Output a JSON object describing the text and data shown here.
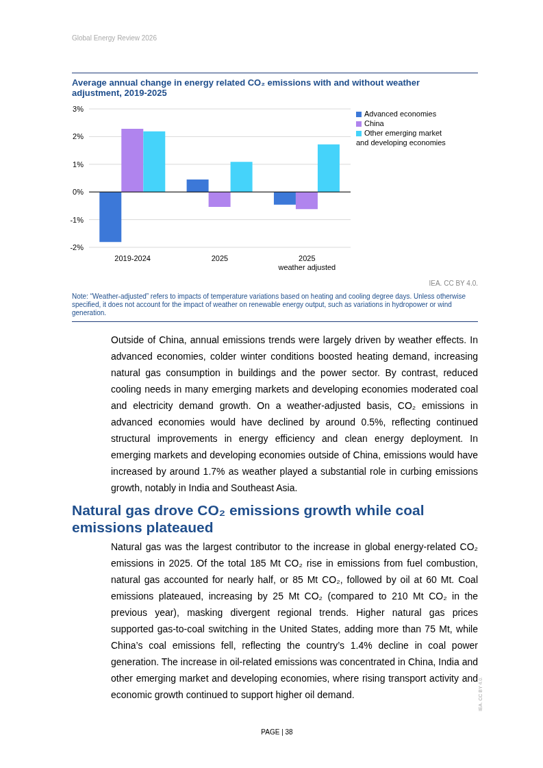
{
  "chart_data": {
    "type": "bar",
    "title": "Average annual change in energy related CO₂ emissions with and without weather adjustment, 2019-2025",
    "categories": [
      "2019-2024",
      "2025",
      "2025\nweather adjusted"
    ],
    "series": [
      {
        "name": "Advanced economies",
        "color": "#3c78d8",
        "values": [
          -1.81,
          0.45,
          -0.46
        ]
      },
      {
        "name": "China",
        "color": "#b084ee",
        "values": [
          2.28,
          -0.54,
          -0.62
        ]
      },
      {
        "name": "Other emerging market and developing economies",
        "color": "#45d3fa",
        "values": [
          2.19,
          1.09,
          1.72
        ]
      }
    ],
    "ylim": [
      -2,
      3
    ],
    "yticks": [
      {
        "value": -2,
        "label": "-2%"
      },
      {
        "value": -1,
        "label": "-1%"
      },
      {
        "value": 0,
        "label": "0%"
      },
      {
        "value": 1,
        "label": "1%"
      },
      {
        "value": 2,
        "label": "2%"
      },
      {
        "value": 3,
        "label": "3%"
      }
    ],
    "grid": "y",
    "legend": "top right",
    "annotations": [
      "Global Energy Review 2026",
      "IEA. CC BY 4.0.",
      "Note: “Weather-adjusted” refers to impacts of temperature variations based on heating and cooling degree days. Unless otherwise specified, it does not account for the impact of weather on renewable energy output, such as variations in hydropower or wind generation.",
      "Outside of China, annual emissions trends were largely driven by weather effects. In advanced economies, colder winter conditions boosted heating demand, increasing natural gas consumption in buildings and the power sector. By contrast, reduced cooling needs in many emerging markets and developing economies moderated coal and electricity demand growth. On a weather-adjusted basis, CO₂ emissions in advanced economies would have declined by around 0.5%, reflecting continued structural improvements in energy efficiency and clean energy deployment. In emerging markets and developing economies outside of China, emissions would have increased by around 1.7% as weather played a substantial role in curbing emissions growth, notably in India and Southeast Asia.",
      "Natural gas drove CO₂ emissions growth while coal emissions plateaued",
      "Natural gas was the largest contributor to the increase in global energy-related CO₂ emissions in 2025. Of the total 185 Mt CO₂ rise in emissions from fuel combustion, natural gas accounted for nearly half, or 85 Mt CO₂, followed by oil at 60 Mt. Coal emissions plateaued, increasing by 25 Mt CO₂ (compared to 210 Mt CO₂ in the previous year), masking divergent regional trends. Higher natural gas prices supported gas-to-coal switching in the United States, adding more than 75 Mt, while China’s coal emissions fell, reflecting the country’s 1.4% decline in coal power generation. The increase in oil-related emissions was concentrated in China, India and other emerging market and developing economies, where rising transport activity and economic growth continued to support higher oil demand.",
      "PAGE | 38",
      "IEA. CC BY 4.0."
    ]
  }
}
